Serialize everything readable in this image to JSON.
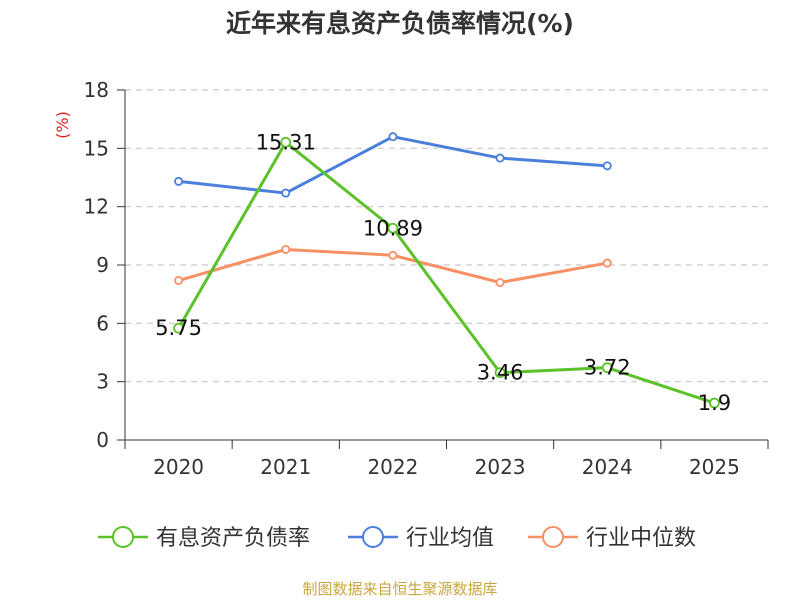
{
  "colors": {
    "debt_ratio": "#5cc22a",
    "industry_avg": "#4a7fdb",
    "industry_median": "#f79063",
    "unit": "#e0211d",
    "source": "#c9a640"
  },
  "source": "制图数据来自恒生聚源数据库",
  "chart_data": {
    "type": "line",
    "title": "近年来有息资产负债率情况(%)",
    "ylabel": "(%)",
    "xlabel": "",
    "ylim": [
      0,
      18
    ],
    "yticks": [
      0,
      3,
      6,
      9,
      12,
      15,
      18
    ],
    "categories": [
      "2020",
      "2021",
      "2022",
      "2023",
      "2024",
      "2025"
    ],
    "grid": "horizontal dashed",
    "legend": "bottom",
    "series": [
      {
        "name": "有息资产负债率",
        "color": "#5cc22a",
        "values": [
          5.75,
          15.31,
          10.89,
          3.46,
          3.72,
          1.9
        ],
        "data_labels": [
          "5.75",
          "15.31",
          "10.89",
          "3.46",
          "3.72",
          "1.9"
        ]
      },
      {
        "name": "行业均值",
        "color": "#4a7fdb",
        "values": [
          13.3,
          12.7,
          15.6,
          14.5,
          14.1,
          null
        ]
      },
      {
        "name": "行业中位数",
        "color": "#f79063",
        "values": [
          8.2,
          9.8,
          9.5,
          8.1,
          9.1,
          null
        ]
      }
    ]
  }
}
